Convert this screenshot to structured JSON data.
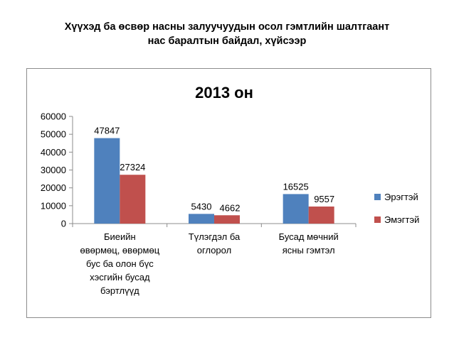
{
  "slide": {
    "title_line1": "Хүүхэд ба өсвөр насны залуучуудын осол гэмтлийн шалтгаант",
    "title_line2": "нас баралтын байдал, хүйсээр"
  },
  "chart_data": {
    "type": "bar",
    "title": "2013 он",
    "xlabel": "",
    "ylabel": "",
    "ylim": [
      0,
      60000
    ],
    "yticks": [
      0,
      10000,
      20000,
      30000,
      40000,
      50000,
      60000
    ],
    "grid": false,
    "legend_position": "right",
    "categories": [
      [
        "Биеийн",
        "өвөрмөц, өвөрмөц",
        "бус ба олон бүс",
        "хэсгийн бусад",
        "бэртлүүд"
      ],
      [
        "Түлэгдэл ба",
        "оглорол"
      ],
      [
        "Бусад мөчний",
        "ясны гэмтэл"
      ]
    ],
    "series": [
      {
        "name": "Эрэгтэй",
        "values": [
          47847,
          5430,
          16525
        ],
        "color": "#4f81bd"
      },
      {
        "name": "Эмэгтэй",
        "values": [
          27324,
          4662,
          9557
        ],
        "color": "#c0504d"
      }
    ]
  }
}
